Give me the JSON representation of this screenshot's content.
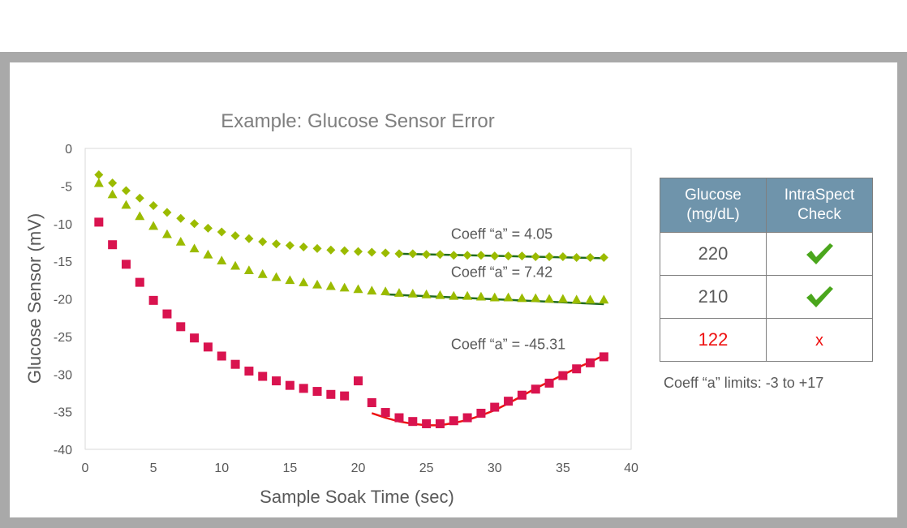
{
  "chart_data": {
    "type": "scatter",
    "title": "Example: Glucose Sensor Error",
    "xlabel": "Sample Soak Time (sec)",
    "ylabel": "Glucose Sensor (mV)",
    "xlim": [
      0,
      40
    ],
    "ylim": [
      -40,
      0
    ],
    "xticks": [
      "0",
      "5",
      "10",
      "15",
      "20",
      "25",
      "30",
      "35",
      "40"
    ],
    "yticks": [
      "0",
      "-5",
      "-10",
      "-15",
      "-20",
      "-25",
      "-30",
      "-35",
      "-40"
    ],
    "grid": false,
    "series": [
      {
        "marker": "diamond",
        "color": "#9bbb00",
        "x": [
          1,
          2,
          3,
          4,
          5,
          6,
          7,
          8,
          9,
          10,
          11,
          12,
          13,
          14,
          15,
          16,
          17,
          18,
          19,
          20,
          21,
          22,
          23,
          24,
          25,
          26,
          27,
          28,
          29,
          30,
          31,
          32,
          33,
          34,
          35,
          36,
          37,
          38
        ],
        "y": [
          -3.5,
          -4.6,
          -5.6,
          -6.6,
          -7.6,
          -8.5,
          -9.3,
          -10.0,
          -10.6,
          -11.1,
          -11.6,
          -12.0,
          -12.4,
          -12.7,
          -12.9,
          -13.1,
          -13.3,
          -13.5,
          -13.6,
          -13.7,
          -13.8,
          -13.9,
          -14.0,
          -14.0,
          -14.1,
          -14.1,
          -14.2,
          -14.2,
          -14.2,
          -14.3,
          -14.3,
          -14.3,
          -14.4,
          -14.4,
          -14.4,
          -14.5,
          -14.5,
          -14.5
        ]
      },
      {
        "marker": "triangle",
        "color": "#9bbb00",
        "x": [
          1,
          2,
          3,
          4,
          5,
          6,
          7,
          8,
          9,
          10,
          11,
          12,
          13,
          14,
          15,
          16,
          17,
          18,
          19,
          20,
          21,
          22,
          23,
          24,
          25,
          26,
          27,
          28,
          29,
          30,
          31,
          32,
          33,
          34,
          35,
          36,
          37,
          38
        ],
        "y": [
          -4.6,
          -6.1,
          -7.5,
          -9.0,
          -10.3,
          -11.4,
          -12.4,
          -13.3,
          -14.1,
          -14.9,
          -15.6,
          -16.2,
          -16.7,
          -17.1,
          -17.5,
          -17.8,
          -18.1,
          -18.3,
          -18.5,
          -18.7,
          -18.9,
          -19.0,
          -19.2,
          -19.3,
          -19.4,
          -19.5,
          -19.6,
          -19.6,
          -19.7,
          -19.8,
          -19.8,
          -19.9,
          -19.9,
          -20.0,
          -20.0,
          -20.1,
          -20.1,
          -20.1
        ]
      },
      {
        "marker": "square",
        "color": "#d9134f",
        "x": [
          1,
          2,
          3,
          4,
          5,
          6,
          7,
          8,
          9,
          10,
          11,
          12,
          13,
          14,
          15,
          16,
          17,
          18,
          19,
          20,
          21,
          22,
          23,
          24,
          25,
          26,
          27,
          28,
          29,
          30,
          31,
          32,
          33,
          34,
          35,
          36,
          37,
          38
        ],
        "y": [
          -9.8,
          -12.8,
          -15.4,
          -17.8,
          -20.2,
          -22.0,
          -23.7,
          -25.2,
          -26.4,
          -27.6,
          -28.7,
          -29.6,
          -30.3,
          -30.9,
          -31.5,
          -31.9,
          -32.3,
          -32.7,
          -32.9,
          -30.9,
          -33.8,
          -35.1,
          -35.8,
          -36.3,
          -36.6,
          -36.6,
          -36.2,
          -35.8,
          -35.2,
          -34.4,
          -33.6,
          -32.8,
          -32.0,
          -31.2,
          -30.2,
          -29.3,
          -28.5,
          -27.7
        ]
      }
    ],
    "trendlines": [
      {
        "color": "#1f6b1f",
        "x": [
          23,
          38
        ],
        "y": [
          -14.0,
          -14.6
        ]
      },
      {
        "color": "#1f6b1f",
        "x": [
          22,
          38
        ],
        "y": [
          -19.4,
          -20.7
        ]
      },
      {
        "color": "#ee1111",
        "x": [
          21,
          22,
          23,
          24,
          25,
          26,
          27,
          28,
          29,
          30,
          31,
          32,
          33,
          34,
          35,
          36,
          37,
          38
        ],
        "y": [
          -35.2,
          -35.8,
          -36.3,
          -36.6,
          -36.8,
          -36.8,
          -36.5,
          -36.1,
          -35.5,
          -34.8,
          -33.9,
          -32.9,
          -31.9,
          -31.0,
          -30.1,
          -29.2,
          -28.4,
          -27.5
        ]
      }
    ],
    "annotations": [
      {
        "text": "Coeff “a” = 4.05",
        "x": 26.8,
        "y": -12.0
      },
      {
        "text": "Coeff “a” = 7.42",
        "x": 26.8,
        "y": -17.1
      },
      {
        "text": "Coeff “a” = -45.31",
        "x": 26.8,
        "y": -26.7
      }
    ]
  },
  "table": {
    "headers": [
      "Glucose\n(mg/dL)",
      "IntraSpect\nCheck"
    ],
    "header_glucose": "Glucose",
    "header_glucose_unit": "(mg/dL)",
    "header_check": "IntraSpect",
    "header_check_2": "Check",
    "rows": [
      {
        "glucose": "220",
        "check": "check-icon",
        "glucose_color": "#595959"
      },
      {
        "glucose": "210",
        "check": "check-icon",
        "glucose_color": "#595959"
      },
      {
        "glucose": "122",
        "check": "x",
        "glucose_color": "#ee1111"
      }
    ],
    "check_color": "#4aa61c"
  },
  "limits_note": "Coeff “a” limits: -3 to +17"
}
